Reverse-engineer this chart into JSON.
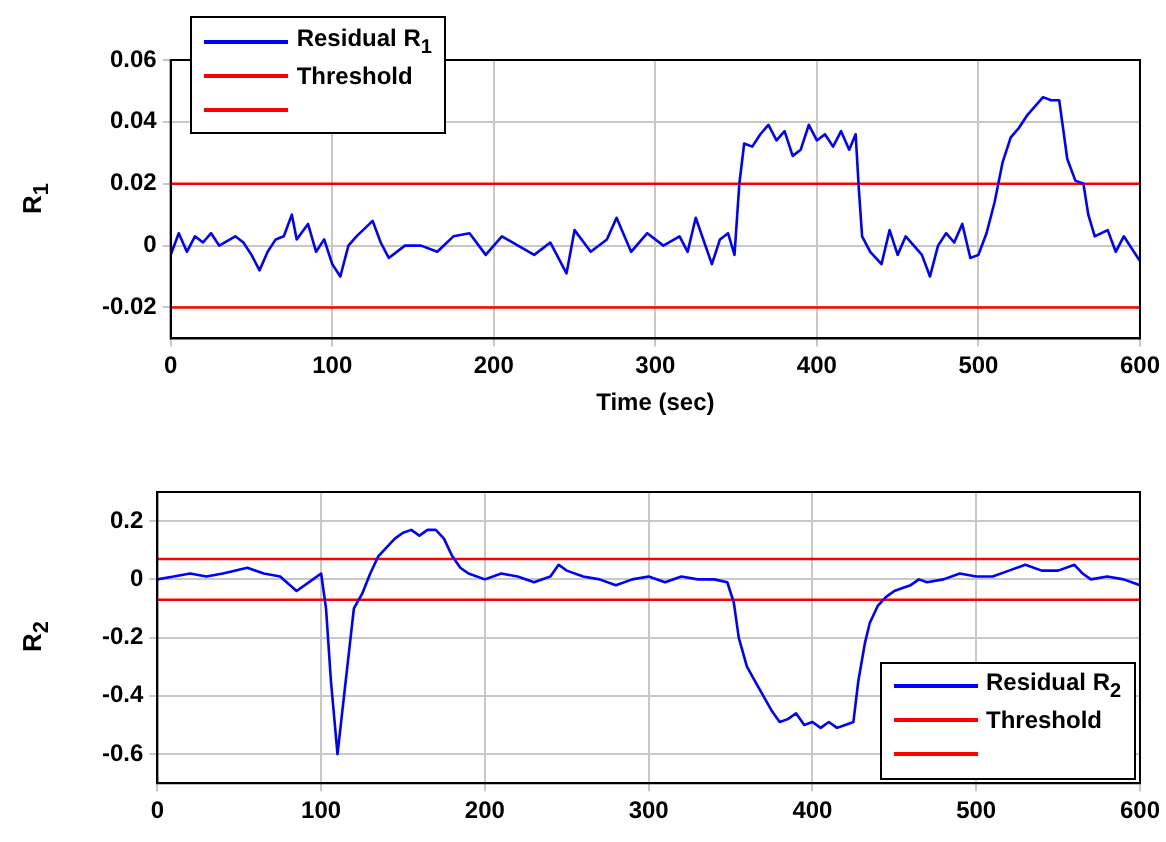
{
  "chart_data": [
    {
      "type": "line",
      "xlabel": "Time (sec)",
      "ylabel": "R$_{1}$",
      "xlim": [
        0,
        600
      ],
      "xticks": [
        0,
        100,
        200,
        300,
        400,
        500,
        600
      ],
      "ylim": [
        -0.03,
        0.06
      ],
      "yticks": [
        -0.02,
        0,
        0.02,
        0.04,
        0.06
      ],
      "grid": true,
      "legend": "top left",
      "marker": "none",
      "line_style": "solid",
      "series": [
        {
          "name": "Residual R$_{1}$",
          "color": "#0000ff",
          "x": [
            0,
            5,
            10,
            15,
            20,
            25,
            30,
            40,
            45,
            50,
            55,
            60,
            65,
            70,
            75,
            78,
            85,
            90,
            95,
            100,
            105,
            110,
            115,
            125,
            130,
            135,
            145,
            155,
            165,
            175,
            185,
            195,
            205,
            215,
            225,
            235,
            245,
            250,
            260,
            270,
            276,
            285,
            295,
            305,
            315,
            320,
            325,
            335,
            340,
            345,
            349,
            352,
            355,
            360,
            365,
            370,
            375,
            380,
            385,
            390,
            395,
            400,
            405,
            410,
            415,
            420,
            424,
            426,
            428,
            433,
            440,
            445,
            450,
            455,
            465,
            470,
            475,
            480,
            485,
            490,
            495,
            500,
            505,
            510,
            515,
            520,
            525,
            530,
            535,
            540,
            545,
            550,
            555,
            560,
            565,
            568,
            572,
            580,
            585,
            590,
            595,
            600
          ],
          "values": [
            -0.003,
            0.004,
            -0.002,
            0.003,
            0.001,
            0.004,
            0,
            0.003,
            0.001,
            -0.003,
            -0.008,
            -0.002,
            0.002,
            0.003,
            0.01,
            0.002,
            0.007,
            -0.002,
            0.002,
            -0.006,
            -0.01,
            0,
            0.003,
            0.008,
            0.001,
            -0.004,
            0,
            0,
            -0.002,
            0.003,
            0.004,
            -0.003,
            0.003,
            0,
            -0.003,
            0.001,
            -0.009,
            0.005,
            -0.002,
            0.002,
            0.009,
            -0.002,
            0.004,
            0,
            0.003,
            -0.002,
            0.009,
            -0.006,
            0.002,
            0.004,
            -0.003,
            0.02,
            0.033,
            0.032,
            0.036,
            0.039,
            0.034,
            0.037,
            0.029,
            0.031,
            0.039,
            0.034,
            0.036,
            0.032,
            0.037,
            0.031,
            0.036,
            0.018,
            0.003,
            -0.002,
            -0.006,
            0.005,
            -0.003,
            0.003,
            -0.003,
            -0.01,
            0,
            0.004,
            0.001,
            0.007,
            -0.004,
            -0.003,
            0.004,
            0.014,
            0.027,
            0.035,
            0.038,
            0.042,
            0.045,
            0.048,
            0.047,
            0.047,
            0.028,
            0.021,
            0.02,
            0.01,
            0.003,
            0.005,
            -0.002,
            0.003,
            -0.001,
            -0.005
          ]
        },
        {
          "name": "Threshold",
          "color": "#ff0000",
          "x": [
            0,
            600
          ],
          "values": [
            0.02,
            0.02
          ]
        },
        {
          "color": "#ff0000",
          "x": [
            0,
            600
          ],
          "values": [
            -0.02,
            -0.02
          ]
        }
      ]
    },
    {
      "type": "line",
      "ylabel": "R$_{2}$",
      "xlim": [
        0,
        600
      ],
      "xticks": [
        0,
        100,
        200,
        300,
        400,
        500,
        600
      ],
      "ylim": [
        -0.7,
        0.3
      ],
      "yticks": [
        -0.6,
        -0.4,
        -0.2,
        0,
        0.2
      ],
      "grid": true,
      "legend": "bottom right",
      "marker": "none",
      "line_style": "solid",
      "series": [
        {
          "name": "Residual R$_{2}$",
          "color": "#0000ff",
          "x": [
            0,
            10,
            20,
            30,
            40,
            55,
            65,
            75,
            85,
            95,
            100,
            103,
            106,
            110,
            113,
            117,
            120,
            125,
            130,
            135,
            140,
            145,
            150,
            155,
            160,
            165,
            170,
            175,
            180,
            185,
            190,
            200,
            210,
            220,
            230,
            240,
            245,
            250,
            260,
            270,
            280,
            290,
            300,
            310,
            320,
            330,
            340,
            348,
            352,
            355,
            360,
            365,
            370,
            375,
            380,
            385,
            390,
            395,
            400,
            405,
            410,
            415,
            420,
            425,
            428,
            432,
            435,
            440,
            445,
            450,
            455,
            460,
            465,
            470,
            480,
            490,
            500,
            510,
            520,
            530,
            540,
            550,
            560,
            565,
            570,
            580,
            590,
            600
          ],
          "values": [
            0,
            0.01,
            0.02,
            0.01,
            0.02,
            0.04,
            0.02,
            0.01,
            -0.04,
            0,
            0.02,
            -0.1,
            -0.35,
            -0.6,
            -0.45,
            -0.25,
            -0.1,
            -0.05,
            0.02,
            0.08,
            0.11,
            0.14,
            0.16,
            0.17,
            0.15,
            0.17,
            0.17,
            0.14,
            0.08,
            0.04,
            0.02,
            0,
            0.02,
            0.01,
            -0.01,
            0.01,
            0.05,
            0.03,
            0.01,
            0,
            -0.02,
            0,
            0.01,
            -0.01,
            0.01,
            0,
            0,
            -0.01,
            -0.08,
            -0.2,
            -0.3,
            -0.35,
            -0.4,
            -0.45,
            -0.49,
            -0.48,
            -0.46,
            -0.5,
            -0.49,
            -0.51,
            -0.49,
            -0.51,
            -0.5,
            -0.49,
            -0.35,
            -0.22,
            -0.15,
            -0.09,
            -0.06,
            -0.04,
            -0.03,
            -0.02,
            0,
            -0.01,
            0,
            0.02,
            0.01,
            0.01,
            0.03,
            0.05,
            0.03,
            0.03,
            0.05,
            0.02,
            0,
            0.01,
            0,
            -0.02
          ]
        },
        {
          "name": "Threshold",
          "color": "#ff0000",
          "x": [
            0,
            600
          ],
          "values": [
            0.07,
            0.07
          ]
        },
        {
          "color": "#ff0000",
          "x": [
            0,
            600
          ],
          "values": [
            -0.07,
            -0.07
          ]
        }
      ]
    }
  ]
}
